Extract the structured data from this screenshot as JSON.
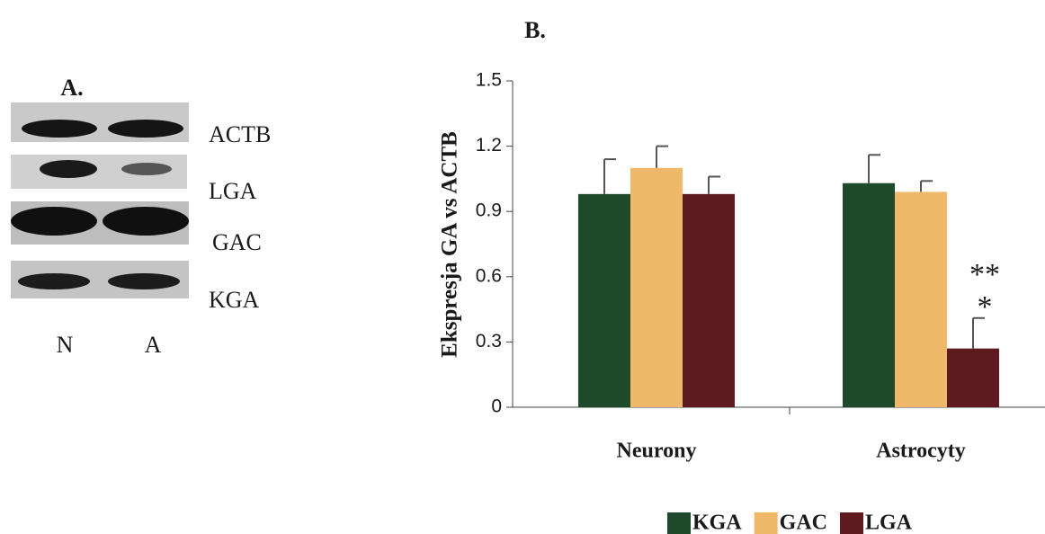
{
  "blot": {
    "panel_label": "A.",
    "rows": [
      "ACTB",
      "LGA",
      "GAC",
      "KGA"
    ],
    "lanes": [
      "N",
      "A"
    ]
  },
  "chart_data": {
    "type": "bar",
    "title": "B.",
    "y_label": "Ekspresja GA vs ACTB",
    "categories": [
      "Neurony",
      "Astrocyty"
    ],
    "series": [
      {
        "name": "KGA",
        "color": "#1e4a2b",
        "values": [
          0.98,
          1.03
        ],
        "errors": [
          0.16,
          0.13
        ]
      },
      {
        "name": "GAC",
        "color": "#f0b96a",
        "values": [
          1.1,
          0.99
        ],
        "errors": [
          0.1,
          0.05
        ]
      },
      {
        "name": "LGA",
        "color": "#5e1a1e",
        "values": [
          0.98,
          0.27
        ],
        "errors": [
          0.08,
          0.14
        ]
      }
    ],
    "annotations": [
      "**",
      "*"
    ],
    "ylim": [
      0,
      1.5
    ],
    "yticks": [
      0,
      0.3,
      0.6,
      0.9,
      1.2,
      1.5
    ],
    "grid": false,
    "legend": "bottom"
  }
}
